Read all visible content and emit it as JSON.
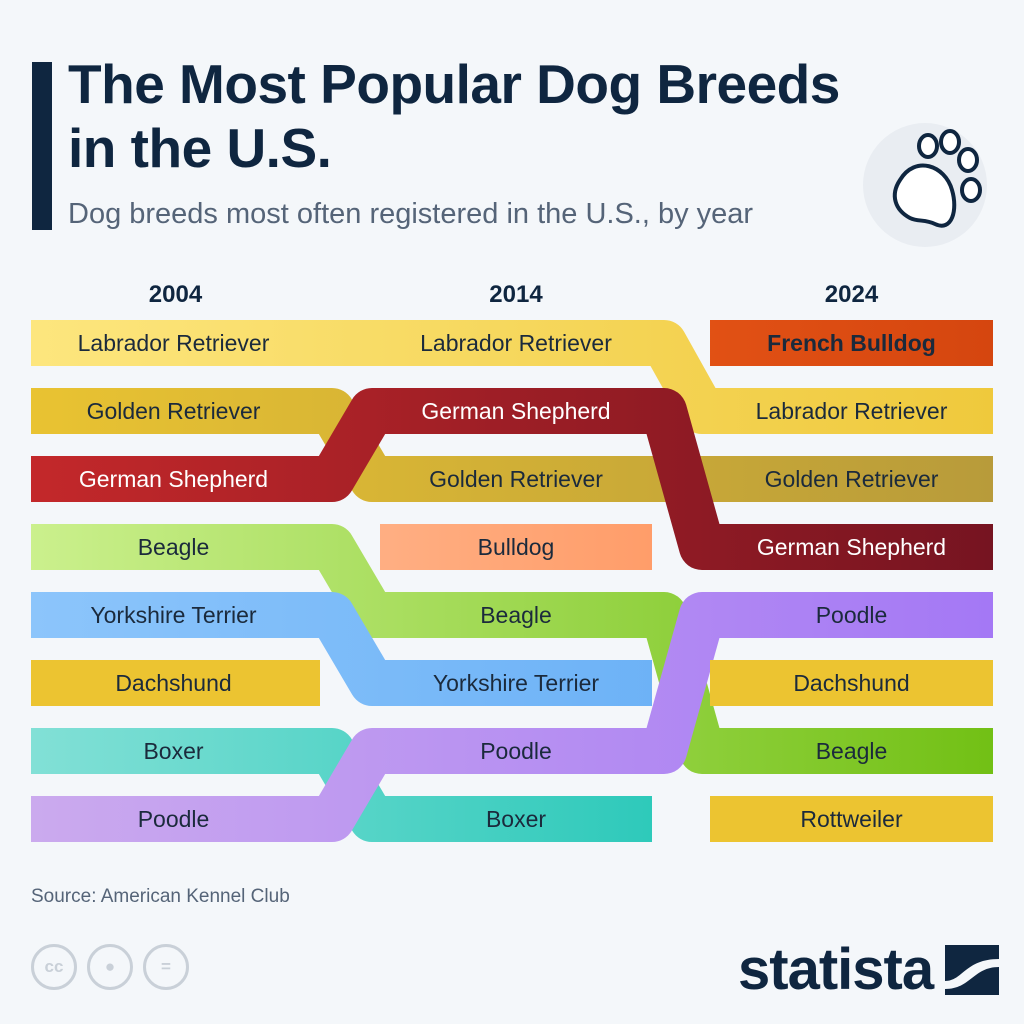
{
  "header": {
    "title_line1": "The Most Popular Dog Breeds",
    "title_line2": "in the U.S.",
    "subtitle": "Dog breeds most often registered in the U.S., by year"
  },
  "footer": {
    "source": "Source: American Kennel Club",
    "license_icons": [
      "cc-icon",
      "attribution-icon",
      "no-derivatives-icon"
    ],
    "license_cc_text": "cc",
    "logo_text": "statista"
  },
  "icons": {
    "decor": "paw-icon"
  },
  "chart_data": {
    "type": "line",
    "subtype": "bump-ranking",
    "title": "",
    "x": [
      "2004",
      "2014",
      "2024"
    ],
    "y_meaning": "rank",
    "ylim": [
      8,
      1
    ],
    "grid": false,
    "legend": "none",
    "rankings": {
      "2004": [
        "Labrador Retriever",
        "Golden Retriever",
        "German Shepherd",
        "Beagle",
        "Yorkshire Terrier",
        "Dachshund",
        "Boxer",
        "Poodle"
      ],
      "2014": [
        "Labrador Retriever",
        "German Shepherd",
        "Golden Retriever",
        "Bulldog",
        "Beagle",
        "Yorkshire Terrier",
        "Poodle",
        "Boxer"
      ],
      "2024": [
        "French Bulldog",
        "Labrador Retriever",
        "Golden Retriever",
        "German Shepherd",
        "Poodle",
        "Dachshund",
        "Beagle",
        "Rottweiler"
      ]
    },
    "series": [
      {
        "name": "Labrador Retriever",
        "ranks": [
          1,
          1,
          2
        ],
        "colors": [
          "#fde67e",
          "#efc93c"
        ]
      },
      {
        "name": "Golden Retriever",
        "ranks": [
          2,
          3,
          3
        ],
        "colors": [
          "#e9c332",
          "#b89b3a"
        ]
      },
      {
        "name": "Beagle",
        "ranks": [
          4,
          5,
          7
        ],
        "colors": [
          "#cbf08d",
          "#72c015"
        ]
      },
      {
        "name": "Boxer",
        "ranks": [
          7,
          8,
          null
        ],
        "colors": [
          "#82e0d6",
          "#00bdab"
        ]
      },
      {
        "name": "German Shepherd",
        "ranks": [
          3,
          2,
          4
        ],
        "colors": [
          "#c3282a",
          "#761421"
        ],
        "text_color": "#ffffff"
      },
      {
        "name": "Yorkshire Terrier",
        "ranks": [
          5,
          6,
          null
        ],
        "colors": [
          "#8cc5fb",
          "#5ca8f4"
        ]
      },
      {
        "name": "Poodle",
        "ranks": [
          8,
          7,
          5
        ],
        "colors": [
          "#cbaaee",
          "#a478f5"
        ]
      },
      {
        "name": "Dachshund",
        "ranks": [
          6,
          null,
          6
        ],
        "colors": [
          "#ecc431",
          "#ecc431"
        ]
      },
      {
        "name": "Bulldog",
        "ranks": [
          null,
          4,
          null
        ],
        "colors": [
          "#ffc5a3",
          "#ff874a"
        ]
      },
      {
        "name": "French Bulldog",
        "ranks": [
          null,
          null,
          1
        ],
        "colors": [
          "#ff6b22",
          "#d5460f"
        ],
        "bold": true
      },
      {
        "name": "Rottweiler",
        "ranks": [
          null,
          null,
          8
        ],
        "colors": [
          "#ecc431",
          "#ecc431"
        ]
      }
    ]
  }
}
